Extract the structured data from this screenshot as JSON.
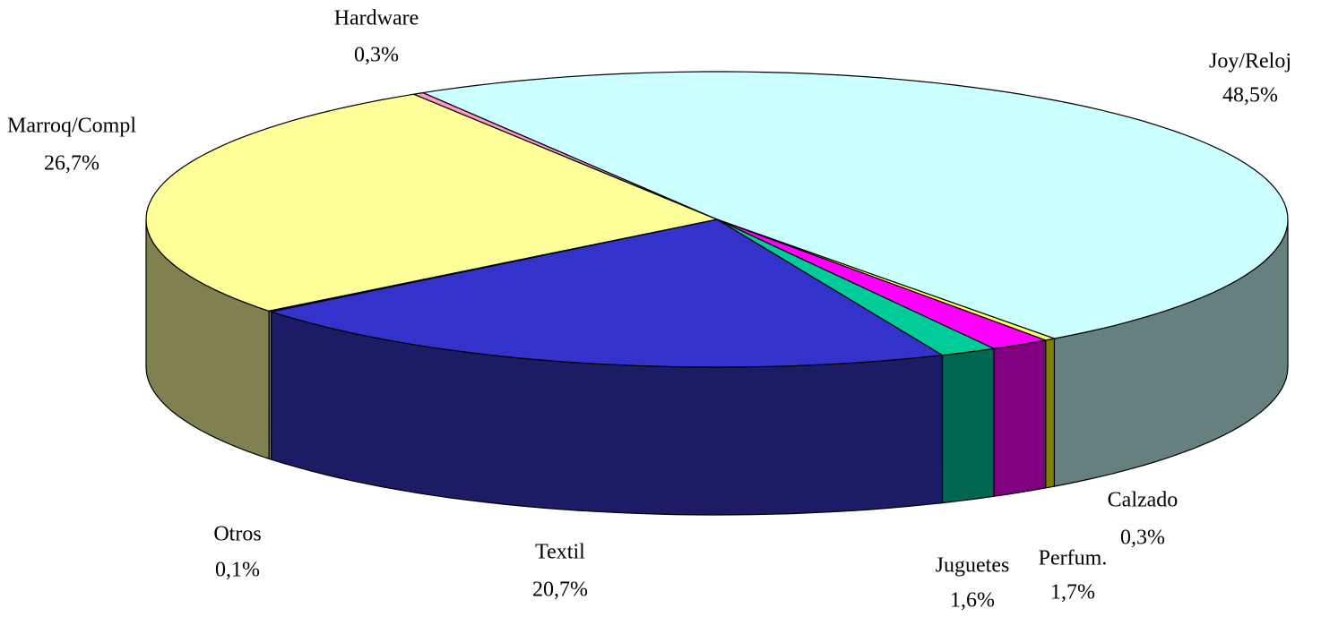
{
  "chart_data": {
    "type": "pie3d",
    "categories": [
      "Joy/Reloj",
      "Calzado",
      "Perfum.",
      "Juguetes",
      "Textil",
      "Otros",
      "Marroq/Compl",
      "Hardware"
    ],
    "values": [
      48.5,
      0.3,
      1.7,
      1.6,
      20.7,
      0.1,
      26.7,
      0.3
    ],
    "value_labels": [
      "48,5%",
      "0,3%",
      "1,7%",
      "1,6%",
      "20,7%",
      "0,1%",
      "26,7%",
      "0,3%"
    ],
    "colors": [
      "#ccffff",
      "#ffff66",
      "#ff00ff",
      "#00cc99",
      "#3333cc",
      "#cccccc",
      "#ffff99",
      "#ff99cc"
    ],
    "side_colors": [
      "#668080",
      "#808000",
      "#800080",
      "#006650",
      "#1c1c66",
      "#808080",
      "#808050",
      "#804c66"
    ]
  }
}
